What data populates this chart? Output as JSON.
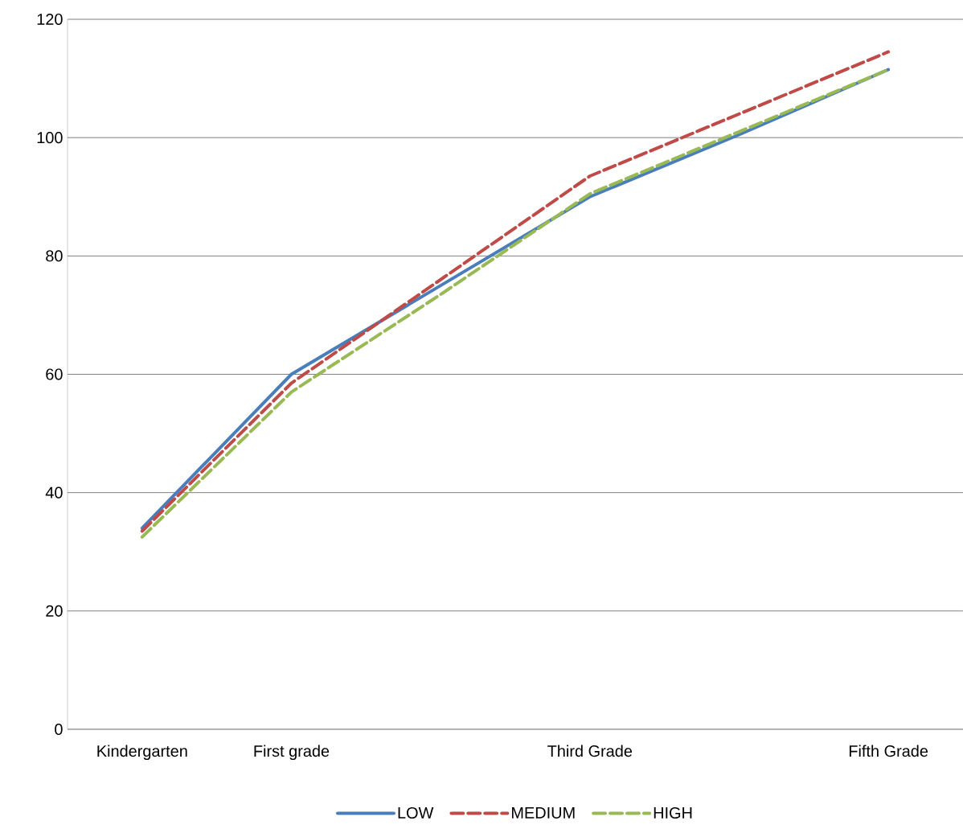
{
  "chart_data": {
    "type": "line",
    "categories": [
      "Kindergarten",
      "First grade",
      null,
      "Third Grade",
      null,
      "Fifth Grade"
    ],
    "series": [
      {
        "name": "LOW",
        "color": "#4a7ebb",
        "line_style": "solid",
        "values": [
          34,
          60,
          75,
          90,
          100.5,
          111.5
        ]
      },
      {
        "name": "MEDIUM",
        "color": "#be4b48",
        "line_style": "dashed",
        "values": [
          33.5,
          58.5,
          76,
          93.5,
          104,
          114.5
        ]
      },
      {
        "name": "HIGH",
        "color": "#98b954",
        "line_style": "dashed",
        "values": [
          32.5,
          57,
          73.5,
          90.5,
          101,
          111.5
        ]
      }
    ],
    "ylim": [
      0,
      120
    ],
    "yticks": [
      0,
      20,
      40,
      60,
      80,
      100,
      120
    ],
    "grid": "y",
    "legend": "bottom",
    "marker": "none"
  }
}
